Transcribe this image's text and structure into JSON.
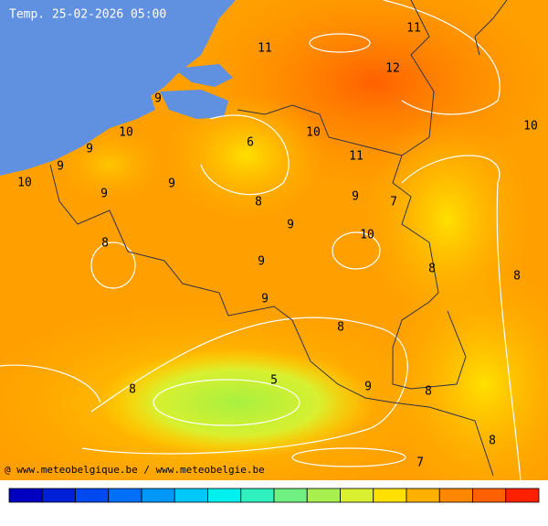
{
  "header": {
    "title": "Temp. 25-02-2026 05:00"
  },
  "footer": {
    "credit": "@ www.meteobelgique.be / www.meteobelgie.be"
  },
  "labels": [
    11,
    11,
    12,
    9,
    10,
    9,
    9,
    10,
    6,
    10,
    11,
    10,
    9,
    9,
    8,
    9,
    7,
    9,
    8,
    10,
    9,
    8,
    8,
    9,
    8,
    5,
    8,
    9,
    8,
    8,
    7
  ],
  "colorbar": [
    "#0000c0",
    "#0020d8",
    "#0048f0",
    "#0070f8",
    "#0098f8",
    "#00c8f8",
    "#00f0f0",
    "#30f0c0",
    "#70f080",
    "#a8f050",
    "#d8f030",
    "#ffe000",
    "#ffb000",
    "#ff8800",
    "#ff6000",
    "#ff2000"
  ]
}
